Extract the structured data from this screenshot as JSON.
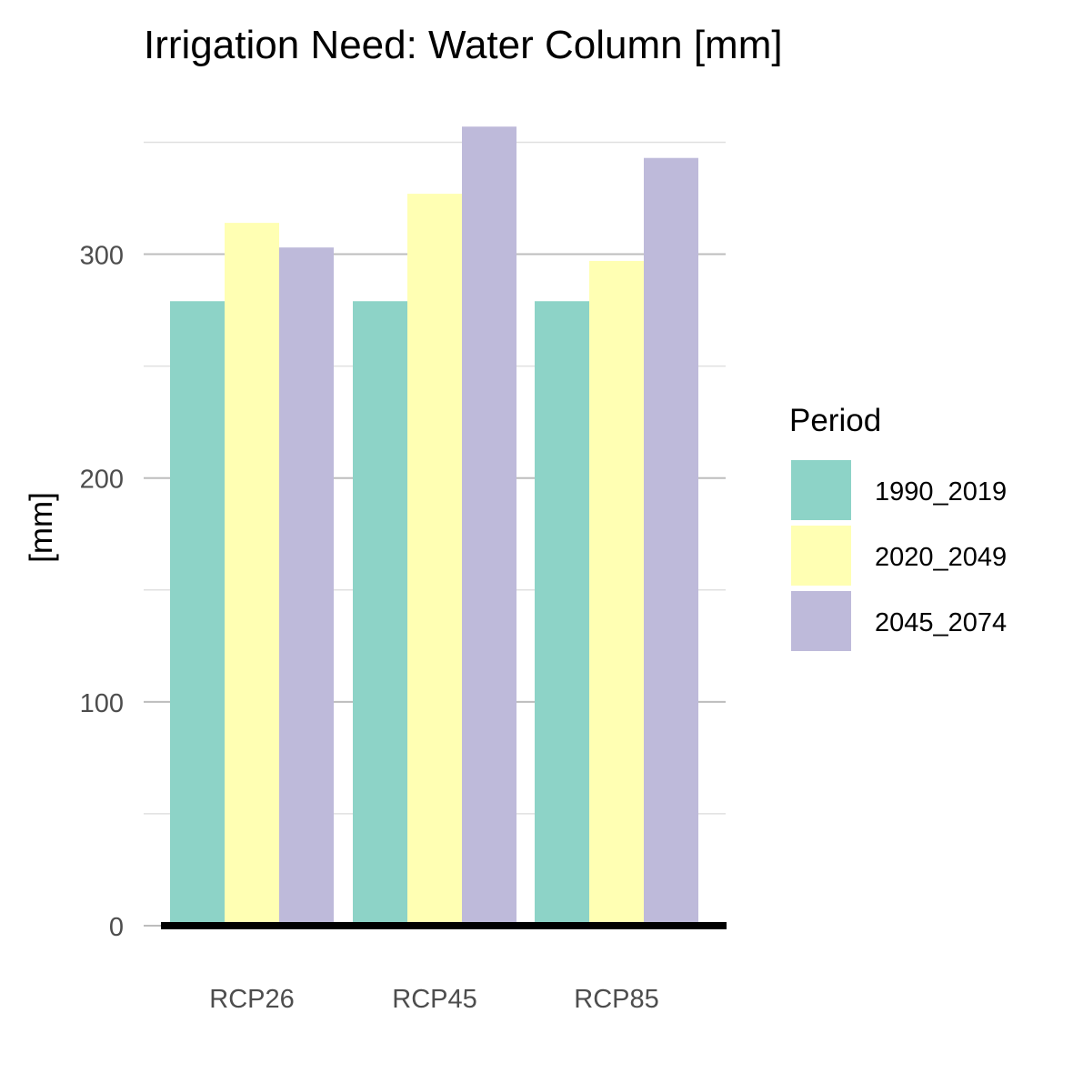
{
  "chart_data": {
    "type": "bar",
    "title": "Irrigation Need: Water Column [mm]",
    "xlabel": "",
    "ylabel": "[mm]",
    "categories": [
      "RCP26",
      "RCP45",
      "RCP85"
    ],
    "series": [
      {
        "name": "1990_2019",
        "color": "#8DD3C7",
        "values": [
          279,
          279,
          279
        ]
      },
      {
        "name": "2020_2049",
        "color": "#FFFFB3",
        "values": [
          314,
          327,
          297
        ]
      },
      {
        "name": "2045_2074",
        "color": "#BEBADA",
        "values": [
          303,
          357,
          343
        ]
      }
    ],
    "ylim": [
      0,
      357
    ],
    "yticks": [
      0,
      100,
      200,
      300
    ],
    "ytick_labels": [
      "0",
      "100",
      "200",
      "300"
    ],
    "legend": {
      "title": "Period",
      "position": "right"
    },
    "grid": true
  }
}
